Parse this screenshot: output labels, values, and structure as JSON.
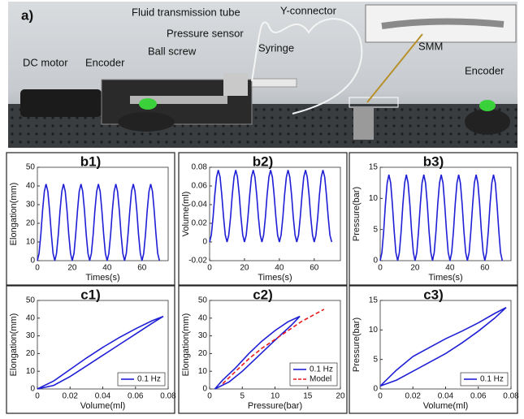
{
  "figure_a": {
    "label": "a)",
    "annotations": [
      "DC motor",
      "Encoder",
      "Ball screw",
      "Pressure sensor",
      "Fluid transmission tube",
      "Y-connector",
      "Syringe",
      "SMM",
      "Encoder"
    ]
  },
  "chart_data": [
    {
      "type": "line",
      "title": "b1)",
      "x_label": "Times(s)",
      "y_label": "Elongation(mm)",
      "x": [
        0,
        1,
        2,
        3,
        4,
        5,
        6,
        7,
        8,
        9,
        10,
        11,
        12,
        13,
        14,
        15,
        16,
        17,
        18,
        19,
        20,
        21,
        22,
        23,
        24,
        25,
        26,
        27,
        28,
        29,
        30,
        31,
        32,
        33,
        34,
        35,
        36,
        37,
        38,
        39,
        40,
        41,
        42,
        43,
        44,
        45,
        46,
        47,
        48,
        49,
        50,
        51,
        52,
        53,
        54,
        55,
        56,
        57,
        58,
        59,
        60,
        61,
        62,
        63,
        64,
        65,
        66,
        67,
        68,
        69,
        70
      ],
      "series": [
        {
          "color": "#1f1fd6",
          "values": [
            0,
            3.92,
            14.17,
            26.83,
            37.08,
            41,
            37.08,
            26.83,
            14.17,
            3.92,
            0,
            3.92,
            14.17,
            26.83,
            37.08,
            41,
            37.08,
            26.83,
            14.17,
            3.92,
            0,
            3.92,
            14.17,
            26.83,
            37.08,
            41,
            37.08,
            26.83,
            14.17,
            3.92,
            0,
            3.92,
            14.17,
            26.83,
            37.08,
            41,
            37.08,
            26.83,
            14.17,
            3.92,
            0,
            3.92,
            14.17,
            26.83,
            37.08,
            41,
            37.08,
            26.83,
            14.17,
            3.92,
            0,
            3.92,
            14.17,
            26.83,
            37.08,
            41,
            37.08,
            26.83,
            14.17,
            3.92,
            0,
            3.92,
            14.17,
            26.83,
            37.08,
            41,
            37.08,
            26.83,
            14.17,
            3.92,
            0
          ]
        }
      ],
      "xlim": [
        0,
        75
      ],
      "xticks": [
        0,
        20,
        40,
        60
      ],
      "ylim": [
        0,
        50
      ],
      "yticks": [
        0,
        10,
        20,
        30,
        40,
        50
      ]
    },
    {
      "type": "line",
      "title": "b2)",
      "x_label": "Times(s)",
      "y_label": "Volume(ml)",
      "x": [
        0,
        1,
        2,
        3,
        4,
        5,
        6,
        7,
        8,
        9,
        10,
        11,
        12,
        13,
        14,
        15,
        16,
        17,
        18,
        19,
        20,
        21,
        22,
        23,
        24,
        25,
        26,
        27,
        28,
        29,
        30,
        31,
        32,
        33,
        34,
        35,
        36,
        37,
        38,
        39,
        40,
        41,
        42,
        43,
        44,
        45,
        46,
        47,
        48,
        49,
        50,
        51,
        52,
        53,
        54,
        55,
        56,
        57,
        58,
        59,
        60,
        61,
        62,
        63,
        64,
        65,
        66,
        67,
        68,
        69,
        70
      ],
      "series": [
        {
          "color": "#1f1fd6",
          "values": [
            0,
            0.0074,
            0.0266,
            0.0504,
            0.0696,
            0.077,
            0.0696,
            0.0504,
            0.0266,
            0.0074,
            0,
            0.0074,
            0.0266,
            0.0504,
            0.0696,
            0.077,
            0.0696,
            0.0504,
            0.0266,
            0.0074,
            0,
            0.0074,
            0.0266,
            0.0504,
            0.0696,
            0.077,
            0.0696,
            0.0504,
            0.0266,
            0.0074,
            0,
            0.0074,
            0.0266,
            0.0504,
            0.0696,
            0.077,
            0.0696,
            0.0504,
            0.0266,
            0.0074,
            0,
            0.0074,
            0.0266,
            0.0504,
            0.0696,
            0.077,
            0.0696,
            0.0504,
            0.0266,
            0.0074,
            0,
            0.0074,
            0.0266,
            0.0504,
            0.0696,
            0.077,
            0.0696,
            0.0504,
            0.0266,
            0.0074,
            0,
            0.0074,
            0.0266,
            0.0504,
            0.0696,
            0.077,
            0.0696,
            0.0504,
            0.0266,
            0.0074,
            0
          ]
        }
      ],
      "xlim": [
        0,
        75
      ],
      "xticks": [
        0,
        20,
        40,
        60
      ],
      "ylim": [
        -0.02,
        0.08
      ],
      "yticks": [
        -0.02,
        0,
        0.02,
        0.04,
        0.06,
        0.08
      ]
    },
    {
      "type": "line",
      "title": "b3)",
      "x_label": "Times(s)",
      "y_label": "Pressure(bar)",
      "x": [
        0,
        1,
        2,
        3,
        4,
        5,
        6,
        7,
        8,
        9,
        10,
        11,
        12,
        13,
        14,
        15,
        16,
        17,
        18,
        19,
        20,
        21,
        22,
        23,
        24,
        25,
        26,
        27,
        28,
        29,
        30,
        31,
        32,
        33,
        34,
        35,
        36,
        37,
        38,
        39,
        40,
        41,
        42,
        43,
        44,
        45,
        46,
        47,
        48,
        49,
        50,
        51,
        52,
        53,
        54,
        55,
        56,
        57,
        58,
        59,
        60,
        61,
        62,
        63,
        64,
        65,
        66,
        67,
        68,
        69,
        70
      ],
      "series": [
        {
          "color": "#1f1fd6",
          "values": [
            0,
            1.32,
            4.77,
            9.03,
            12.48,
            13.8,
            12.48,
            9.03,
            4.77,
            1.32,
            0,
            1.32,
            4.77,
            9.03,
            12.48,
            13.8,
            12.48,
            9.03,
            4.77,
            1.32,
            0,
            1.32,
            4.77,
            9.03,
            12.48,
            13.8,
            12.48,
            9.03,
            4.77,
            1.32,
            0,
            1.32,
            4.77,
            9.03,
            12.48,
            13.8,
            12.48,
            9.03,
            4.77,
            1.32,
            0,
            1.32,
            4.77,
            9.03,
            12.48,
            13.8,
            12.48,
            9.03,
            4.77,
            1.32,
            0,
            1.32,
            4.77,
            9.03,
            12.48,
            13.8,
            12.48,
            9.03,
            4.77,
            1.32,
            0,
            1.32,
            4.77,
            9.03,
            12.48,
            13.8,
            12.48,
            9.03,
            4.77,
            1.32,
            0
          ]
        }
      ],
      "xlim": [
        0,
        75
      ],
      "xticks": [
        0,
        20,
        40,
        60
      ],
      "ylim": [
        0,
        15
      ],
      "yticks": [
        0,
        5,
        10,
        15
      ]
    },
    {
      "type": "line",
      "title": "c1)",
      "x_label": "Volume(ml)",
      "y_label": "Elongation(mm)",
      "legend": "lower right",
      "series": [
        {
          "name": "0.1 Hz",
          "color": "#1f1fd6",
          "x": [
            0,
            0.01,
            0.02,
            0.03,
            0.04,
            0.05,
            0.06,
            0.07,
            0.077,
            0.07,
            0.06,
            0.05,
            0.04,
            0.03,
            0.02,
            0.01,
            0
          ],
          "values": [
            0,
            2,
            7,
            13,
            19,
            25,
            31,
            37,
            41,
            38.5,
            34,
            29,
            23.5,
            17.5,
            11,
            4.5,
            0
          ]
        }
      ],
      "xlim": [
        0,
        0.08
      ],
      "xticks": [
        0,
        0.02,
        0.04,
        0.06,
        0.08
      ],
      "ylim": [
        0,
        50
      ],
      "yticks": [
        0,
        10,
        20,
        30,
        40,
        50
      ]
    },
    {
      "type": "line",
      "title": "c2)",
      "x_label": "Pressure(bar)",
      "y_label": "Elongation(mm)",
      "legend": "lower right",
      "series": [
        {
          "name": "0.1 Hz",
          "color": "#1f1fd6",
          "x": [
            0.8,
            3,
            5,
            7,
            9,
            11,
            12.5,
            13.8,
            12,
            10,
            8,
            6,
            4,
            2,
            0.8
          ],
          "values": [
            0,
            4,
            10,
            17,
            24,
            31,
            36,
            41,
            38,
            33,
            27,
            20,
            12,
            5,
            0
          ]
        },
        {
          "name": "Model",
          "color": "#e8191b",
          "dashed": true,
          "x": [
            2,
            4,
            6,
            8,
            10,
            12,
            14,
            16,
            17.5
          ],
          "values": [
            3,
            10,
            17,
            23,
            28,
            33,
            38,
            42,
            45
          ]
        }
      ],
      "xlim": [
        0,
        20
      ],
      "xticks": [
        0,
        5,
        10,
        15,
        20
      ],
      "ylim": [
        0,
        50
      ],
      "yticks": [
        0,
        10,
        20,
        30,
        40,
        50
      ]
    },
    {
      "type": "line",
      "title": "c3)",
      "x_label": "Volume(ml)",
      "y_label": "Pressure(bar)",
      "legend": "lower right",
      "series": [
        {
          "name": "0.1 Hz",
          "color": "#1f1fd6",
          "x": [
            0,
            0.01,
            0.02,
            0.03,
            0.04,
            0.05,
            0.06,
            0.07,
            0.077,
            0.07,
            0.06,
            0.05,
            0.04,
            0.03,
            0.02,
            0.01,
            0
          ],
          "values": [
            0.5,
            1.5,
            3,
            4.5,
            6,
            7.8,
            9.8,
            12,
            13.8,
            12.8,
            11.2,
            9.8,
            8.5,
            7,
            5.5,
            3.2,
            0.5
          ]
        }
      ],
      "xlim": [
        0,
        0.08
      ],
      "xticks": [
        0,
        0.02,
        0.04,
        0.06,
        0.08
      ],
      "ylim": [
        0,
        15
      ],
      "yticks": [
        0,
        5,
        10,
        15
      ]
    }
  ]
}
